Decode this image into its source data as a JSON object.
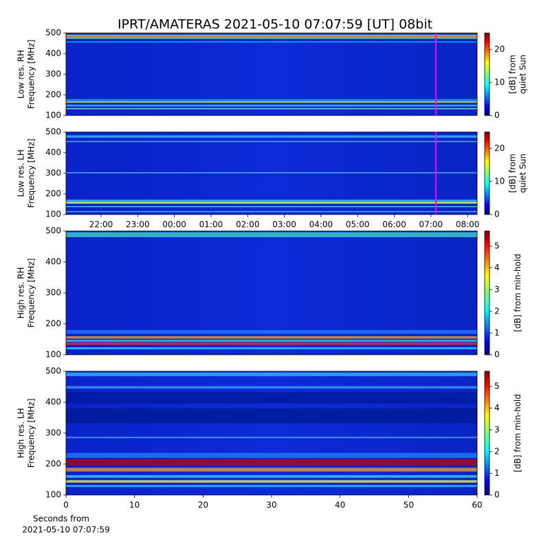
{
  "chart_data": [
    {
      "type": "heatmap",
      "title": "IPRT/AMATERAS 2021-05-10 07:07:59 [UT]   08bit",
      "ylabel": [
        "Low res. RH",
        "Frequency [MHz]"
      ],
      "ylim": [
        100,
        500
      ],
      "yticks": [
        100,
        200,
        300,
        400,
        500
      ],
      "xlim": [
        -2.957,
        8.26
      ],
      "cursor": 7.133,
      "cursor_color": "#ff00ff",
      "colorbar": {
        "label": [
          "[dB] from",
          "quiet Sun"
        ],
        "lim": [
          0,
          25
        ],
        "ticks": [
          0,
          10,
          20
        ]
      }
    },
    {
      "type": "heatmap",
      "ylabel": [
        "Low res. LH",
        "Frequency [MHz]"
      ],
      "ylim": [
        100,
        500
      ],
      "yticks": [
        100,
        200,
        300,
        400,
        500
      ],
      "xlim": [
        -2.957,
        8.26
      ],
      "cursor": 7.133,
      "cursor_color": "#ff00ff",
      "xticks": [
        {
          "value": -2,
          "label": "22:00"
        },
        {
          "value": -1,
          "label": "23:00"
        },
        {
          "value": 0,
          "label": "00:00"
        },
        {
          "value": 1,
          "label": "01:00"
        },
        {
          "value": 2,
          "label": "02:00"
        },
        {
          "value": 3,
          "label": "03:00"
        },
        {
          "value": 4,
          "label": "04:00"
        },
        {
          "value": 5,
          "label": "05:00"
        },
        {
          "value": 6,
          "label": "06:00"
        },
        {
          "value": 7,
          "label": "07:00"
        },
        {
          "value": 8,
          "label": "08:00"
        }
      ],
      "colorbar": {
        "label": [
          "[dB] from",
          "quiet Sun"
        ],
        "lim": [
          0,
          25
        ],
        "ticks": [
          0,
          10,
          20
        ]
      }
    },
    {
      "type": "heatmap",
      "ylabel": [
        "High res. RH",
        "Frequency [MHz]"
      ],
      "ylim": [
        100,
        500
      ],
      "yticks": [
        100,
        200,
        300,
        400,
        500
      ],
      "xlim": [
        0,
        60
      ],
      "colorbar": {
        "label": [
          "[dB] from min-hold"
        ],
        "lim": [
          0,
          5.7
        ],
        "ticks": [
          0,
          1,
          2,
          3,
          4,
          5
        ]
      }
    },
    {
      "type": "heatmap",
      "ylabel": [
        "High res. LH",
        "Frequency [MHz]"
      ],
      "ylim": [
        100,
        500
      ],
      "yticks": [
        100,
        200,
        300,
        400,
        500
      ],
      "xlim": [
        0,
        60
      ],
      "xticks": [
        0,
        10,
        20,
        30,
        40,
        50,
        60
      ],
      "xlabel": [
        "Seconds from",
        "2021-05-10 07:07:59"
      ],
      "colorbar": {
        "label": [
          "[dB] from min-hold"
        ],
        "lim": [
          0,
          5.7
        ],
        "ticks": [
          0,
          1,
          2,
          3,
          4,
          5
        ]
      }
    }
  ]
}
